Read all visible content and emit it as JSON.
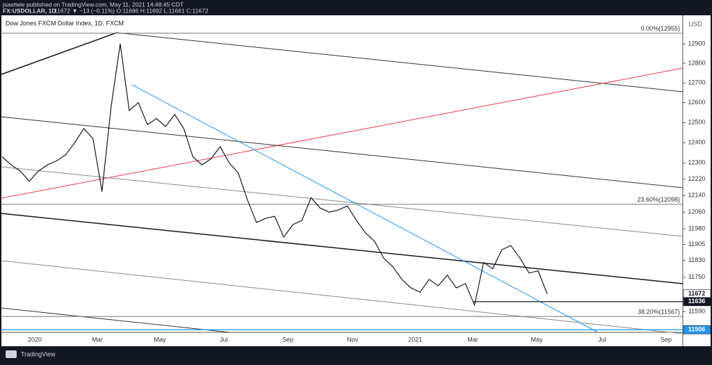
{
  "header": {
    "line1": "jsaettele published on TradingView.com, May 11, 2021 14:48:45 CDT",
    "symbol": "FX:USDOLLAR, 1D",
    "quote": "11672 ▼ −13 (−0.11%) O:11686 H:11692 L:11661 C:11672"
  },
  "chart_data": {
    "type": "line",
    "title": "Dow Jones FXCM Dollar Index, 1D, FXCM",
    "y_unit": "USD",
    "log_scale": true,
    "color": "#131722",
    "ylim": [
      11494,
      13048
    ],
    "yticks": [
      12900,
      12800,
      12700,
      12600,
      12500,
      12400,
      12300,
      12220,
      12140,
      12060,
      11980,
      11905,
      11830,
      11750,
      11590
    ],
    "x_labels": [
      "2020",
      "Mar",
      "May",
      "Jul",
      "Sep",
      "Nov",
      "2021",
      "Mar",
      "May",
      "Jul",
      "Sep"
    ],
    "values": [
      12330,
      12290,
      12260,
      12210,
      12260,
      12290,
      12310,
      12340,
      12400,
      12470,
      12420,
      12160,
      12580,
      12900,
      12560,
      12600,
      12490,
      12520,
      12480,
      12540,
      12470,
      12330,
      12290,
      12320,
      12380,
      12300,
      12250,
      12120,
      12010,
      12030,
      12040,
      11940,
      12000,
      12020,
      12130,
      12080,
      12060,
      12070,
      12090,
      12020,
      11960,
      11920,
      11840,
      11800,
      11740,
      11700,
      11680,
      11740,
      11710,
      11760,
      11700,
      11720,
      11620,
      11820,
      11790,
      11880,
      11900,
      11840,
      11770,
      11780,
      11672
    ],
    "levels": [
      {
        "value": 12955,
        "label": "0.00%(12955)"
      },
      {
        "value": 12098,
        "label": "23.60%(12098)"
      },
      {
        "value": 11567,
        "label": "38.20%(11567)"
      }
    ],
    "price_labels": [
      11672,
      11636,
      11506
    ]
  },
  "footer": {
    "brand": "TradingView"
  }
}
